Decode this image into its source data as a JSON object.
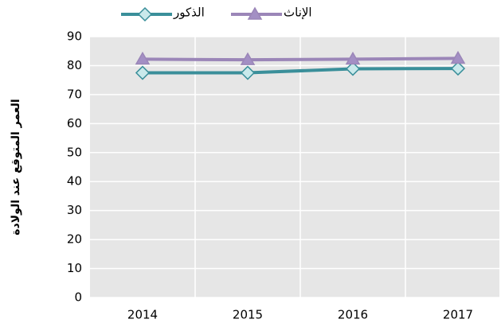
{
  "chart_data": {
    "type": "line",
    "y_label": "العمر المتوقع عند الولادة",
    "categories": [
      "2014",
      "2015",
      "2016",
      "2017"
    ],
    "series": [
      {
        "name": "الذكور",
        "color": "#3a8f9a",
        "marker_fill": "#c9e9eb",
        "marker": "diamond",
        "values": [
          77.5,
          77.5,
          78.9,
          79.0
        ]
      },
      {
        "name": "الإناث",
        "color": "#9b86b8",
        "marker_fill": "#a38fc4",
        "marker": "triangle",
        "values": [
          82.2,
          82.0,
          82.2,
          82.5
        ]
      }
    ],
    "ylim": [
      0,
      90
    ],
    "yticks": [
      0,
      10,
      20,
      30,
      40,
      50,
      60,
      70,
      80,
      90
    ],
    "grid": true,
    "legend": "top"
  }
}
